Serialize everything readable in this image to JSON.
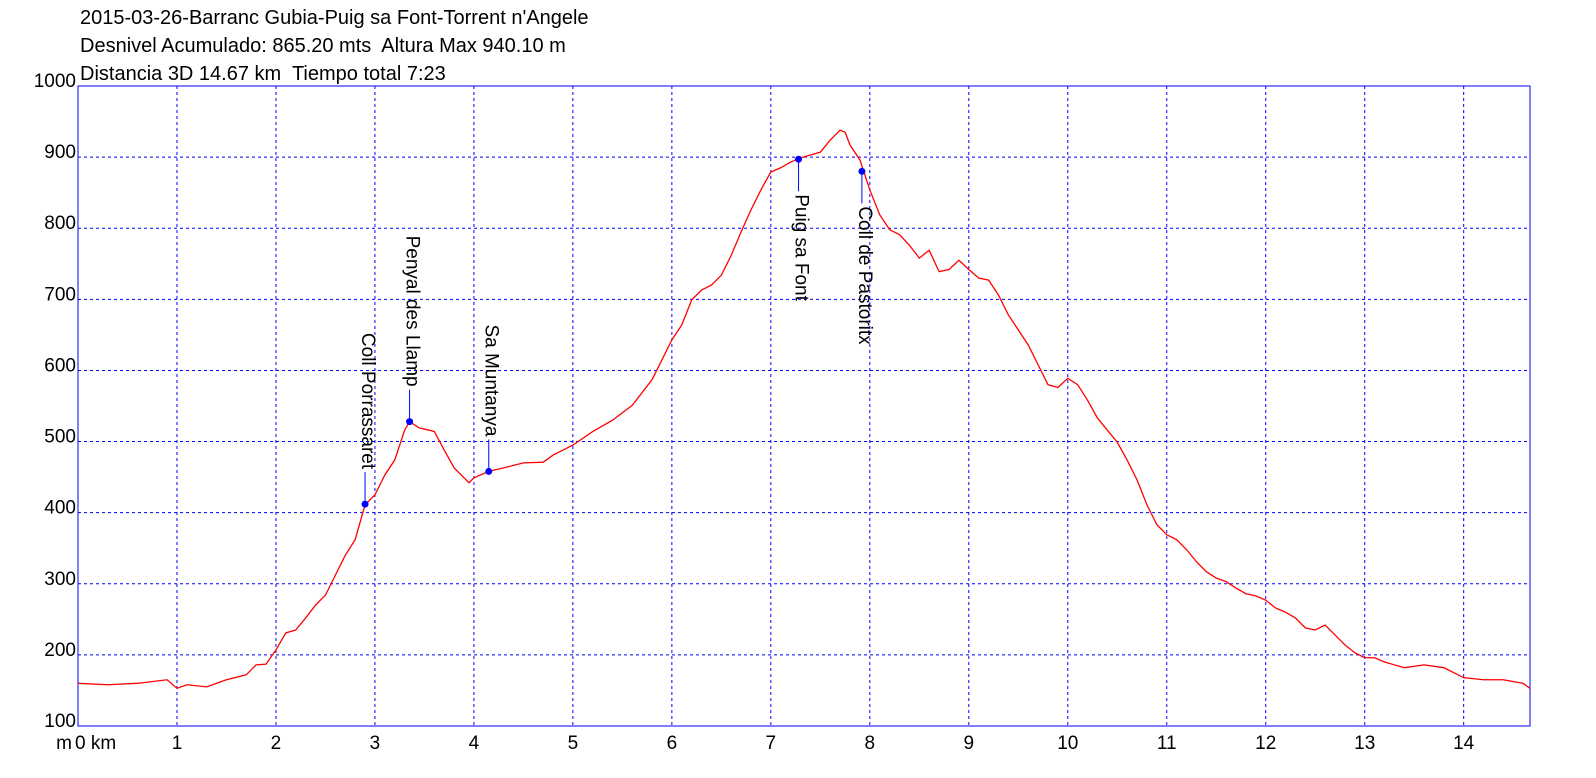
{
  "chart_data": {
    "type": "line",
    "title_lines": [
      "2015-03-26-Barranc Gubia-Puig sa Font-Torrent n'Angele",
      "Desnivel Acumulado: 865.20 mts  Altura Max 940.10 m",
      "Distancia 3D 14.67 km  Tiempo total 7:23"
    ],
    "y_unit": "m",
    "xlim": [
      0,
      14.67
    ],
    "ylim": [
      100,
      1000
    ],
    "xticks": [
      {
        "value": 0,
        "label": "0 km"
      },
      1,
      2,
      3,
      4,
      5,
      6,
      7,
      8,
      9,
      10,
      11,
      12,
      13,
      14
    ],
    "yticks": [
      100,
      200,
      300,
      400,
      500,
      600,
      700,
      800,
      900,
      1000
    ],
    "grid": true,
    "series": [
      {
        "color": "#ff0000",
        "x": [
          0,
          0.3,
          0.6,
          0.9,
          1.0,
          1.1,
          1.3,
          1.5,
          1.7,
          1.8,
          1.9,
          2.0,
          2.1,
          2.2,
          2.3,
          2.4,
          2.5,
          2.6,
          2.7,
          2.8,
          2.9,
          3.0,
          3.1,
          3.2,
          3.3,
          3.35,
          3.45,
          3.55,
          3.6,
          3.7,
          3.8,
          3.9,
          3.95,
          4.0,
          4.15,
          4.3,
          4.5,
          4.7,
          4.8,
          5.0,
          5.2,
          5.4,
          5.6,
          5.8,
          6.0,
          6.1,
          6.2,
          6.3,
          6.4,
          6.5,
          6.6,
          6.7,
          6.8,
          6.9,
          7.0,
          7.1,
          7.2,
          7.3,
          7.4,
          7.5,
          7.6,
          7.7,
          7.75,
          7.8,
          7.9,
          8.0,
          8.1,
          8.2,
          8.3,
          8.4,
          8.5,
          8.6,
          8.7,
          8.8,
          8.9,
          9.0,
          9.1,
          9.2,
          9.3,
          9.4,
          9.5,
          9.6,
          9.7,
          9.8,
          9.9,
          10.0,
          10.1,
          10.2,
          10.3,
          10.4,
          10.5,
          10.6,
          10.7,
          10.8,
          10.9,
          11.0,
          11.1,
          11.2,
          11.3,
          11.4,
          11.5,
          11.6,
          11.7,
          11.8,
          11.9,
          12.0,
          12.1,
          12.2,
          12.3,
          12.4,
          12.5,
          12.6,
          12.7,
          12.8,
          12.9,
          13.0,
          13.1,
          13.2,
          13.4,
          13.6,
          13.8,
          14.0,
          14.2,
          14.4,
          14.6,
          14.67
        ],
        "values": [
          160,
          158,
          160,
          165,
          153,
          158,
          155,
          165,
          172,
          186,
          187,
          207,
          231,
          235,
          252,
          270,
          284,
          312,
          340,
          362,
          411,
          425,
          453,
          474,
          516,
          528,
          519,
          516,
          514,
          488,
          463,
          449,
          442,
          449,
          458,
          463,
          470,
          471,
          481,
          495,
          514,
          530,
          551,
          587,
          643,
          664,
          699,
          713,
          720,
          734,
          762,
          795,
          826,
          854,
          879,
          885,
          893,
          899,
          903,
          907,
          924,
          938,
          935,
          917,
          896,
          854,
          819,
          798,
          791,
          776,
          758,
          769,
          739,
          742,
          755,
          742,
          730,
          727,
          706,
          678,
          657,
          636,
          608,
          580,
          576,
          589,
          580,
          558,
          533,
          516,
          499,
          474,
          446,
          411,
          383,
          369,
          362,
          348,
          331,
          317,
          308,
          303,
          294,
          286,
          283,
          277,
          266,
          260,
          252,
          238,
          235,
          242,
          228,
          214,
          203,
          196,
          196,
          190,
          182,
          186,
          182,
          168,
          165,
          165,
          160,
          153
        ]
      }
    ],
    "annotations": [
      {
        "label": "Coll Porrassaret",
        "x": 2.9,
        "y": 412
      },
      {
        "label": "Penyal des Llamp",
        "x": 3.35,
        "y": 528
      },
      {
        "label": "Sa Muntanya",
        "x": 4.15,
        "y": 458
      },
      {
        "label": "Puig sa Font",
        "x": 7.28,
        "y": 897
      },
      {
        "label": "Coll de Pastoritx",
        "x": 7.92,
        "y": 880
      }
    ],
    "annotation_color": "#0000ff"
  }
}
